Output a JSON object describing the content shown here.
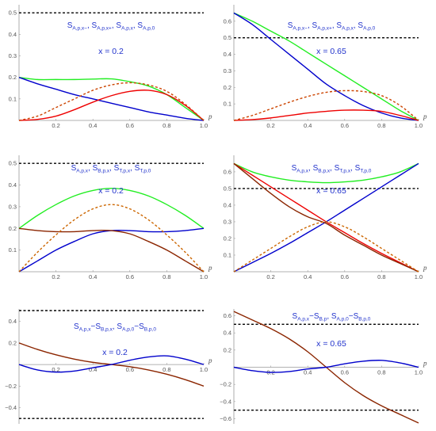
{
  "chart_data": [
    {
      "type": "line",
      "annotation": [
        "S",
        "A,p,x−",
        ", S",
        "A,p,x+",
        ", S",
        "A,p,x",
        ", S",
        "A,p,0"
      ],
      "param_text": "x = 0.2",
      "xlabel": "p",
      "xlim": [
        0,
        1.0
      ],
      "ylim": [
        0,
        0.53
      ],
      "xticks": [
        "0.2",
        "0.4",
        "0.6",
        "0.8",
        "1.0"
      ],
      "yticks": [
        "0.1",
        "0.2",
        "0.3",
        "0.4",
        "0.5"
      ],
      "x": [
        0,
        0.1,
        0.2,
        0.3,
        0.4,
        0.5,
        0.6,
        0.7,
        0.8,
        0.9,
        1.0
      ],
      "hlines": [
        0.5
      ],
      "series": [
        {
          "color": "#22ee22",
          "style": "solid",
          "values": [
            0.2,
            0.19,
            0.19,
            0.19,
            0.192,
            0.193,
            0.18,
            0.16,
            0.12,
            0.06,
            0
          ]
        },
        {
          "color": "#0000cc",
          "style": "solid",
          "values": [
            0.2,
            0.17,
            0.145,
            0.12,
            0.1,
            0.08,
            0.06,
            0.04,
            0.025,
            0.01,
            0
          ]
        },
        {
          "color": "#ee0000",
          "style": "solid",
          "values": [
            0,
            0.005,
            0.02,
            0.05,
            0.085,
            0.115,
            0.135,
            0.14,
            0.12,
            0.07,
            0
          ]
        },
        {
          "color": "#cc4400",
          "style": "dashed",
          "values": [
            0,
            0.02,
            0.06,
            0.1,
            0.14,
            0.165,
            0.175,
            0.165,
            0.135,
            0.075,
            0
          ]
        }
      ]
    },
    {
      "type": "line",
      "annotation": [
        "S",
        "A,p,x−",
        ", S",
        "A,p,x+",
        ", S",
        "A,p,x",
        ", S",
        "A,p,0"
      ],
      "param_text": "x = 0.65",
      "xlabel": "p",
      "xlim": [
        0,
        1.0
      ],
      "ylim": [
        0,
        0.69
      ],
      "xticks": [
        "0.2",
        "0.4",
        "0.6",
        "0.8",
        "1.0"
      ],
      "yticks": [
        "0.1",
        "0.2",
        "0.3",
        "0.4",
        "0.5",
        "0.6"
      ],
      "x": [
        0,
        0.1,
        0.2,
        0.3,
        0.4,
        0.5,
        0.6,
        0.7,
        0.8,
        0.9,
        1.0
      ],
      "hlines": [
        0.5
      ],
      "series": [
        {
          "color": "#22ee22",
          "style": "solid",
          "values": [
            0.65,
            0.6,
            0.54,
            0.48,
            0.41,
            0.34,
            0.27,
            0.2,
            0.13,
            0.06,
            0
          ]
        },
        {
          "color": "#0000cc",
          "style": "solid",
          "values": [
            0.65,
            0.58,
            0.49,
            0.4,
            0.31,
            0.22,
            0.15,
            0.09,
            0.045,
            0.015,
            0
          ]
        },
        {
          "color": "#ee0000",
          "style": "solid",
          "values": [
            0,
            0.005,
            0.015,
            0.03,
            0.045,
            0.055,
            0.062,
            0.062,
            0.055,
            0.03,
            0
          ]
        },
        {
          "color": "#cc4400",
          "style": "dashed",
          "values": [
            0,
            0.03,
            0.07,
            0.11,
            0.145,
            0.17,
            0.18,
            0.175,
            0.15,
            0.09,
            0
          ]
        }
      ]
    },
    {
      "type": "line",
      "annotation": [
        "S",
        "A,p,x",
        ", S",
        "B,p,x",
        ", S",
        "T,p,x",
        ", S",
        "T,p,0"
      ],
      "param_text": "x = 0.2",
      "xlabel": "p",
      "xlim": [
        0,
        1.0
      ],
      "ylim": [
        0,
        0.53
      ],
      "xticks": [
        "0.2",
        "0.4",
        "0.6",
        "0.8",
        "1.0"
      ],
      "yticks": [
        "0.1",
        "0.2",
        "0.3",
        "0.4",
        "0.5"
      ],
      "x": [
        0,
        0.1,
        0.2,
        0.3,
        0.4,
        0.5,
        0.6,
        0.7,
        0.8,
        0.9,
        1.0
      ],
      "hlines": [
        0.5
      ],
      "series": [
        {
          "color": "#22ee22",
          "style": "solid",
          "values": [
            0.2,
            0.26,
            0.31,
            0.35,
            0.375,
            0.385,
            0.375,
            0.35,
            0.31,
            0.26,
            0.2
          ]
        },
        {
          "color": "#0000cc",
          "style": "solid",
          "values": [
            0,
            0.05,
            0.1,
            0.14,
            0.175,
            0.19,
            0.19,
            0.185,
            0.185,
            0.19,
            0.2
          ]
        },
        {
          "color": "#8b2500",
          "style": "solid",
          "values": [
            0.2,
            0.19,
            0.185,
            0.185,
            0.19,
            0.19,
            0.175,
            0.14,
            0.1,
            0.05,
            0
          ]
        },
        {
          "color": "#cc6600",
          "style": "dashed",
          "values": [
            0,
            0.09,
            0.17,
            0.24,
            0.29,
            0.31,
            0.29,
            0.24,
            0.17,
            0.09,
            0
          ]
        }
      ]
    },
    {
      "type": "line",
      "annotation": [
        "S",
        "A,p,x",
        ", S",
        "B,p,x",
        ", S",
        "T,p,x",
        ", S",
        "T,p,0"
      ],
      "param_text": "x = 0.65",
      "xlabel": "p",
      "xlim": [
        0,
        1.0
      ],
      "ylim": [
        0,
        0.69
      ],
      "xticks": [
        "0.2",
        "0.4",
        "0.6",
        "0.8",
        "1.0"
      ],
      "yticks": [
        "0.1",
        "0.2",
        "0.3",
        "0.4",
        "0.5",
        "0.6"
      ],
      "x": [
        0,
        0.1,
        0.2,
        0.3,
        0.4,
        0.5,
        0.6,
        0.7,
        0.8,
        0.9,
        1.0
      ],
      "hlines": [
        0.5
      ],
      "series": [
        {
          "color": "#22ee22",
          "style": "solid",
          "values": [
            0.65,
            0.6,
            0.57,
            0.55,
            0.54,
            0.535,
            0.54,
            0.55,
            0.57,
            0.6,
            0.65
          ]
        },
        {
          "color": "#ee0000",
          "style": "solid",
          "values": [
            0.65,
            0.58,
            0.51,
            0.44,
            0.37,
            0.3,
            0.235,
            0.17,
            0.11,
            0.055,
            0
          ]
        },
        {
          "color": "#0000cc",
          "style": "solid",
          "values": [
            0,
            0.055,
            0.11,
            0.17,
            0.235,
            0.3,
            0.37,
            0.44,
            0.51,
            0.58,
            0.65
          ]
        },
        {
          "color": "#8b2500",
          "style": "solid",
          "values": [
            0.65,
            0.56,
            0.47,
            0.39,
            0.33,
            0.29,
            0.22,
            0.16,
            0.1,
            0.05,
            0
          ]
        },
        {
          "color": "#cc6600",
          "style": "dashed",
          "values": [
            0,
            0.07,
            0.14,
            0.21,
            0.27,
            0.3,
            0.27,
            0.21,
            0.14,
            0.07,
            0
          ]
        }
      ]
    },
    {
      "type": "line",
      "annotation": [
        "S",
        "A,p,x",
        "−S",
        "B,p,x",
        ", S",
        "A,p,0",
        "−S",
        "B,p,0"
      ],
      "param_text": "x = 0.2",
      "xlabel": "p",
      "xlim": [
        0,
        1.0
      ],
      "ylim": [
        -0.55,
        0.5
      ],
      "xticks": [
        "0.2",
        "0.4",
        "0.6",
        "0.8",
        "1.0"
      ],
      "yticks": [
        "−0.4",
        "−0.2",
        "0.2",
        "0.4"
      ],
      "x": [
        0,
        0.1,
        0.2,
        0.3,
        0.4,
        0.5,
        0.6,
        0.7,
        0.8,
        0.9,
        1.0
      ],
      "hlines": [
        0.5,
        -0.5
      ],
      "series": [
        {
          "color": "#8b2500",
          "style": "solid",
          "values": [
            0.2,
            0.14,
            0.09,
            0.05,
            0.02,
            0,
            -0.02,
            -0.05,
            -0.09,
            -0.14,
            -0.2
          ]
        },
        {
          "color": "#0000cc",
          "style": "solid",
          "values": [
            0,
            -0.05,
            -0.07,
            -0.06,
            -0.03,
            0,
            0.04,
            0.07,
            0.08,
            0.05,
            0
          ]
        }
      ]
    },
    {
      "type": "line",
      "annotation": [
        "S",
        "A,p,x",
        "−S",
        "B,p",
        ", S",
        "A,p,0",
        "−S",
        "B,p,0"
      ],
      "param_text": "x = 0.65",
      "xlabel": "p",
      "xlim": [
        0,
        1.0
      ],
      "ylim": [
        -0.66,
        0.66
      ],
      "xticks": [
        "0.2",
        "0.4",
        "0.6",
        "0.8",
        "1.0"
      ],
      "yticks": [
        "−0.6",
        "−0.4",
        "−0.2",
        "0.2",
        "0.4",
        "0.6"
      ],
      "x": [
        0,
        0.1,
        0.2,
        0.3,
        0.4,
        0.5,
        0.6,
        0.7,
        0.8,
        0.9,
        1.0
      ],
      "hlines": [
        0.5,
        -0.5
      ],
      "series": [
        {
          "color": "#8b2500",
          "style": "solid",
          "values": [
            0.65,
            0.55,
            0.45,
            0.33,
            0.18,
            0,
            -0.18,
            -0.33,
            -0.45,
            -0.55,
            -0.65
          ]
        },
        {
          "color": "#0000cc",
          "style": "solid",
          "values": [
            0,
            -0.04,
            -0.06,
            -0.05,
            -0.02,
            0,
            0.04,
            0.07,
            0.08,
            0.05,
            0
          ]
        }
      ]
    }
  ]
}
